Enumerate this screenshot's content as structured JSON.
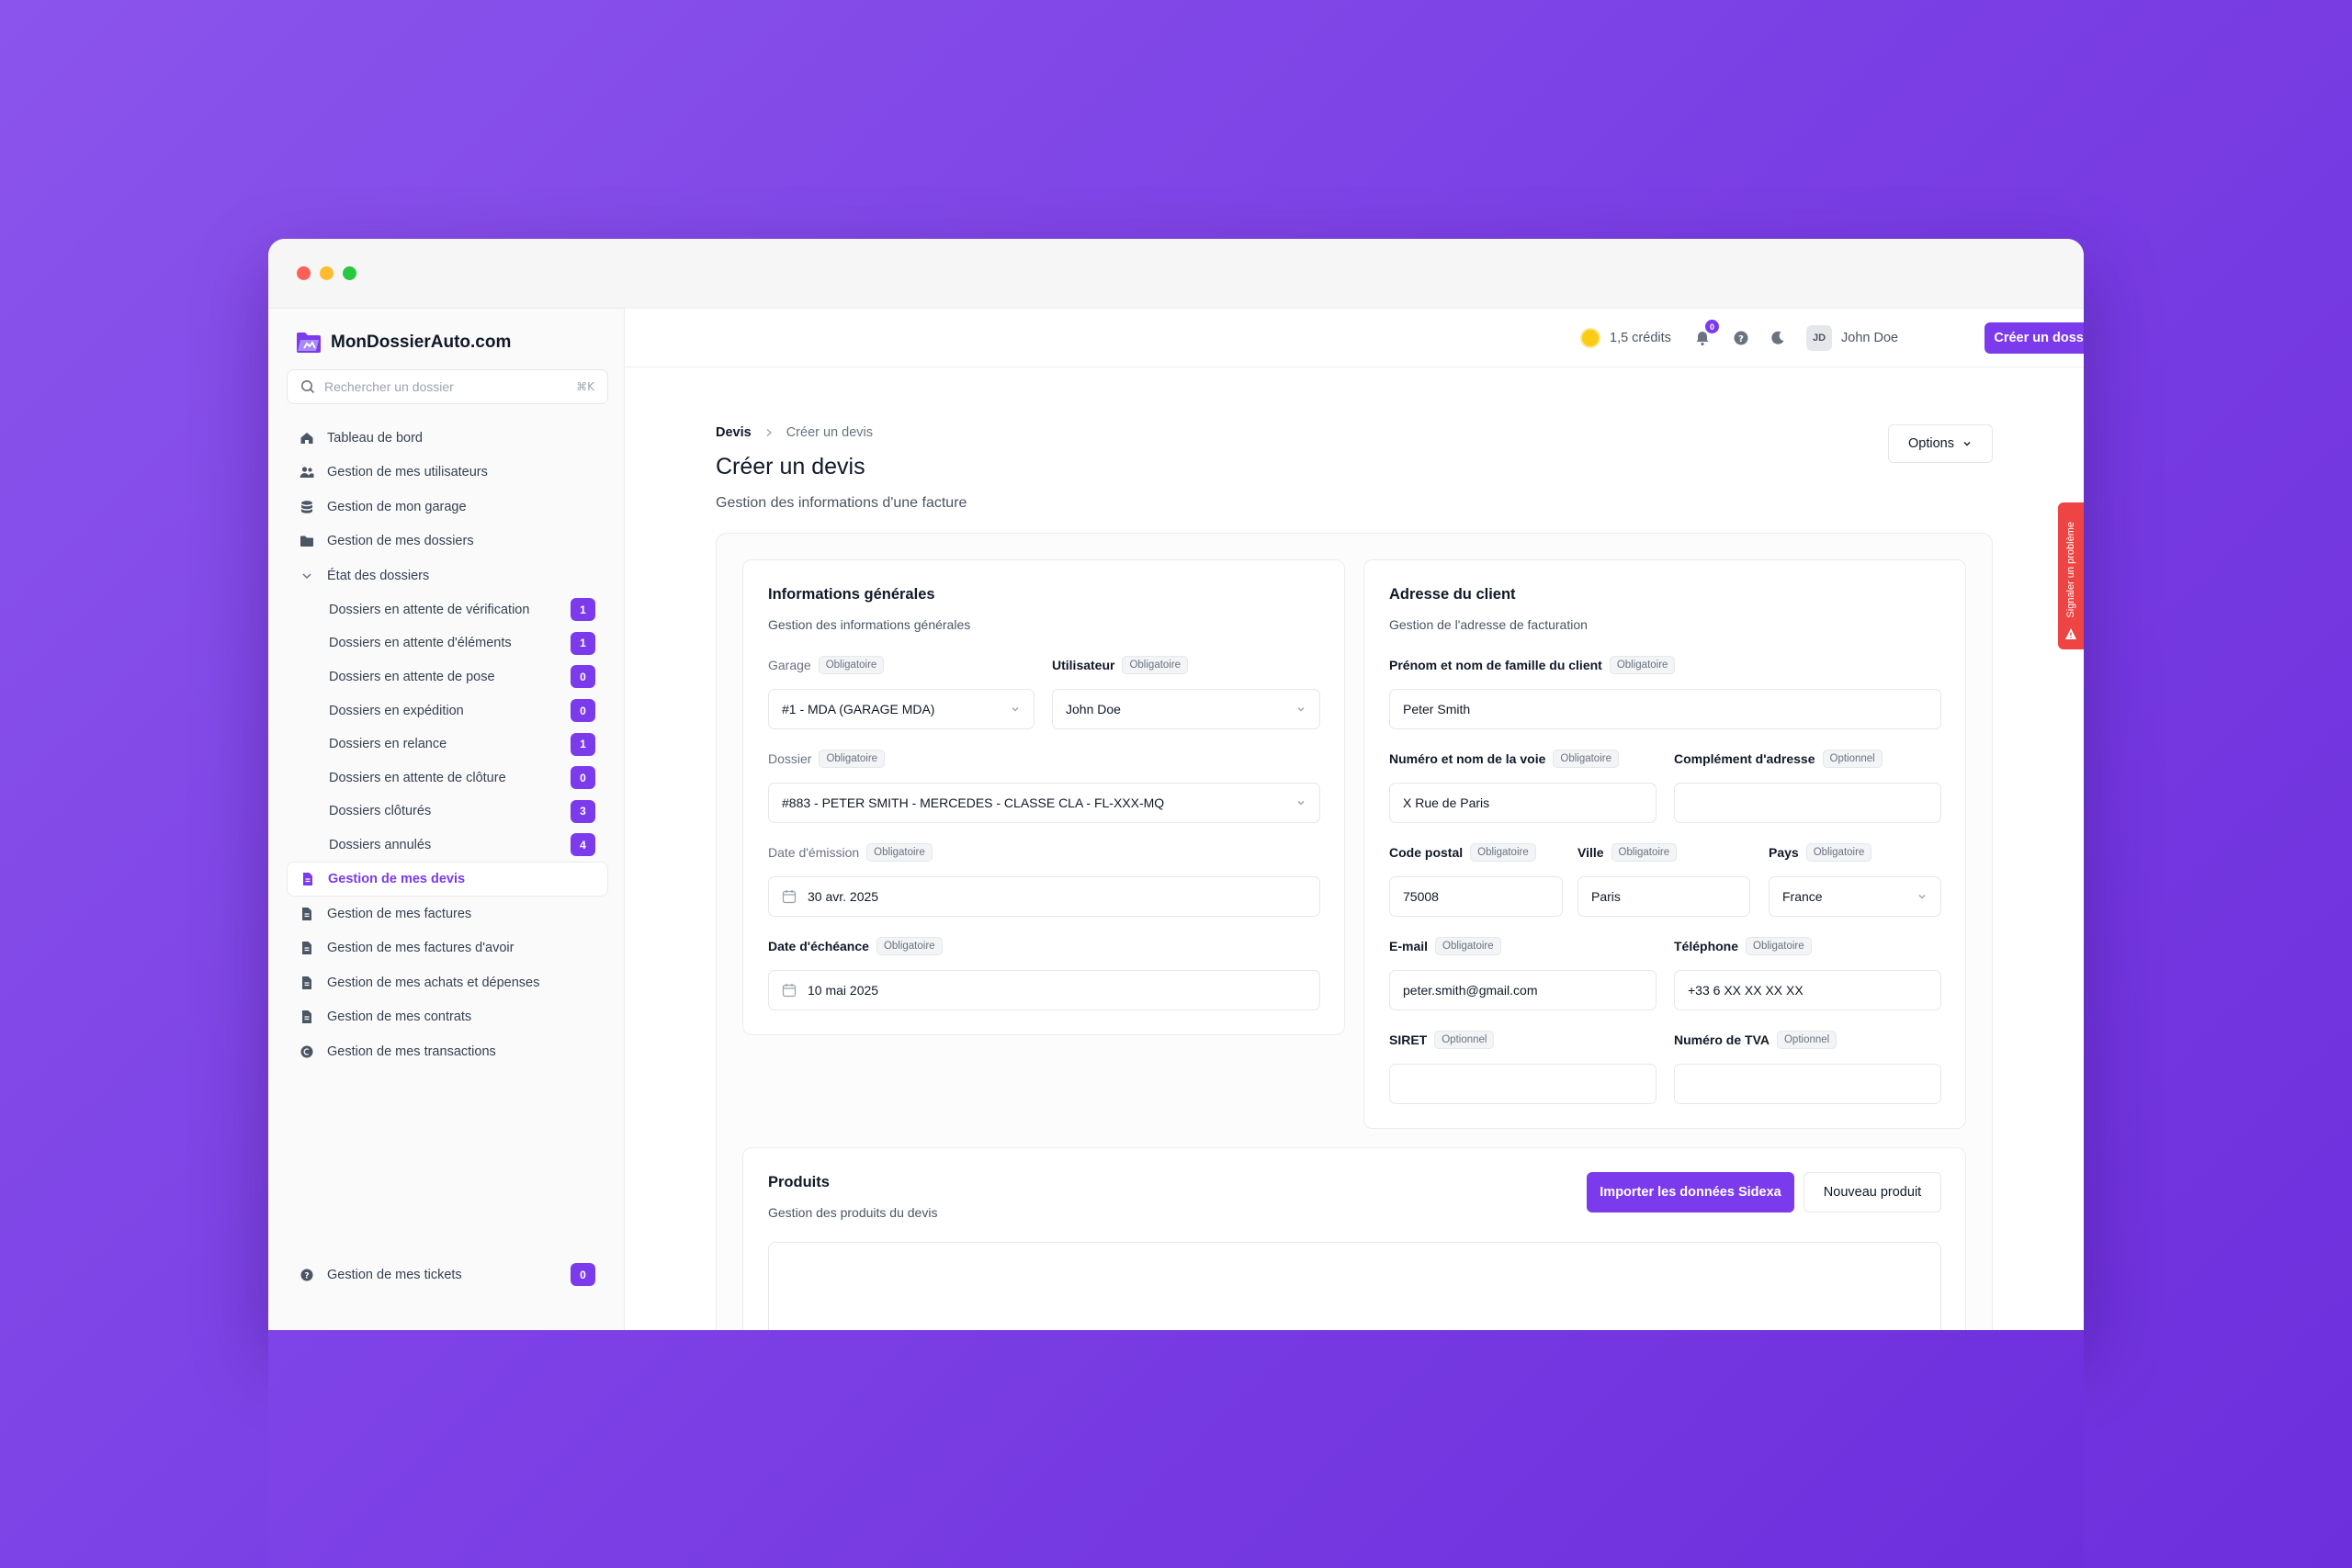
{
  "app": {
    "name": "MonDossierAuto.com"
  },
  "search": {
    "placeholder": "Rechercher un dossier",
    "shortcut": "⌘K"
  },
  "sidebar": {
    "items": [
      {
        "label": "Tableau de bord",
        "icon": "home-icon"
      },
      {
        "label": "Gestion de mes utilisateurs",
        "icon": "users-icon"
      },
      {
        "label": "Gestion de mon garage",
        "icon": "database-icon"
      },
      {
        "label": "Gestion de mes dossiers",
        "icon": "folder-icon"
      },
      {
        "label": "État des dossiers",
        "icon": "chevron-down-icon"
      }
    ],
    "subitems": [
      {
        "label": "Dossiers en attente de vérification",
        "count": "1"
      },
      {
        "label": "Dossiers en attente d'éléments",
        "count": "1"
      },
      {
        "label": "Dossiers en attente de pose",
        "count": "0"
      },
      {
        "label": "Dossiers en expédition",
        "count": "0"
      },
      {
        "label": "Dossiers en relance",
        "count": "1"
      },
      {
        "label": "Dossiers en attente de clôture",
        "count": "0"
      },
      {
        "label": "Dossiers clôturés",
        "count": "3"
      },
      {
        "label": "Dossiers annulés",
        "count": "4"
      }
    ],
    "items2": [
      {
        "label": "Gestion de mes devis",
        "active": true
      },
      {
        "label": "Gestion de mes factures"
      },
      {
        "label": "Gestion de mes factures d'avoir"
      },
      {
        "label": "Gestion de mes achats et dépenses"
      },
      {
        "label": "Gestion de mes contrats"
      },
      {
        "label": "Gestion de mes transactions"
      }
    ],
    "tickets": {
      "label": "Gestion de mes tickets",
      "count": "0"
    }
  },
  "topbar": {
    "credits": "1,5 crédits",
    "notifications_count": "0",
    "user_initials": "JD",
    "user_name": "John Doe",
    "create_button": "Créer un dossier"
  },
  "breadcrumb": {
    "root": "Devis",
    "current": "Créer un devis"
  },
  "page": {
    "title": "Créer un devis",
    "subtitle": "Gestion des informations d'une facture",
    "options_label": "Options"
  },
  "general": {
    "title": "Informations générales",
    "subtitle": "Gestion des informations générales",
    "garage": {
      "label": "Garage",
      "tag": "Obligatoire",
      "value": "#1 - MDA (GARAGE MDA)"
    },
    "user": {
      "label": "Utilisateur",
      "tag": "Obligatoire",
      "value": "John Doe"
    },
    "dossier": {
      "label": "Dossier",
      "tag": "Obligatoire",
      "value": "#883 - PETER SMITH - MERCEDES - CLASSE CLA - FL-XXX-MQ"
    },
    "issue_date": {
      "label": "Date d'émission",
      "tag": "Obligatoire",
      "value": "30 avr. 2025"
    },
    "due_date": {
      "label": "Date d'échéance",
      "tag": "Obligatoire",
      "value": "10 mai 2025"
    }
  },
  "client": {
    "title": "Adresse du client",
    "subtitle": "Gestion de l'adresse de facturation",
    "name": {
      "label": "Prénom et nom de famille du client",
      "tag": "Obligatoire",
      "value": "Peter Smith"
    },
    "street": {
      "label": "Numéro et nom de la voie",
      "tag": "Obligatoire",
      "value": "X Rue de Paris"
    },
    "complement": {
      "label": "Complément d'adresse",
      "tag": "Optionnel",
      "value": ""
    },
    "postal": {
      "label": "Code postal",
      "tag": "Obligatoire",
      "value": "75008"
    },
    "city": {
      "label": "Ville",
      "tag": "Obligatoire",
      "value": "Paris"
    },
    "country": {
      "label": "Pays",
      "tag": "Obligatoire",
      "value": "France"
    },
    "email": {
      "label": "E-mail",
      "tag": "Obligatoire",
      "value": "peter.smith@gmail.com"
    },
    "phone": {
      "label": "Téléphone",
      "tag": "Obligatoire",
      "value": "+33 6 XX XX XX XX"
    },
    "siret": {
      "label": "SIRET",
      "tag": "Optionnel",
      "value": ""
    },
    "vat": {
      "label": "Numéro de TVA",
      "tag": "Optionnel",
      "value": ""
    }
  },
  "products": {
    "title": "Produits",
    "subtitle": "Gestion des produits du devis",
    "import_button": "Importer les données Sidexa",
    "new_button": "Nouveau produit"
  },
  "report": {
    "label": "Signaler un problème"
  }
}
